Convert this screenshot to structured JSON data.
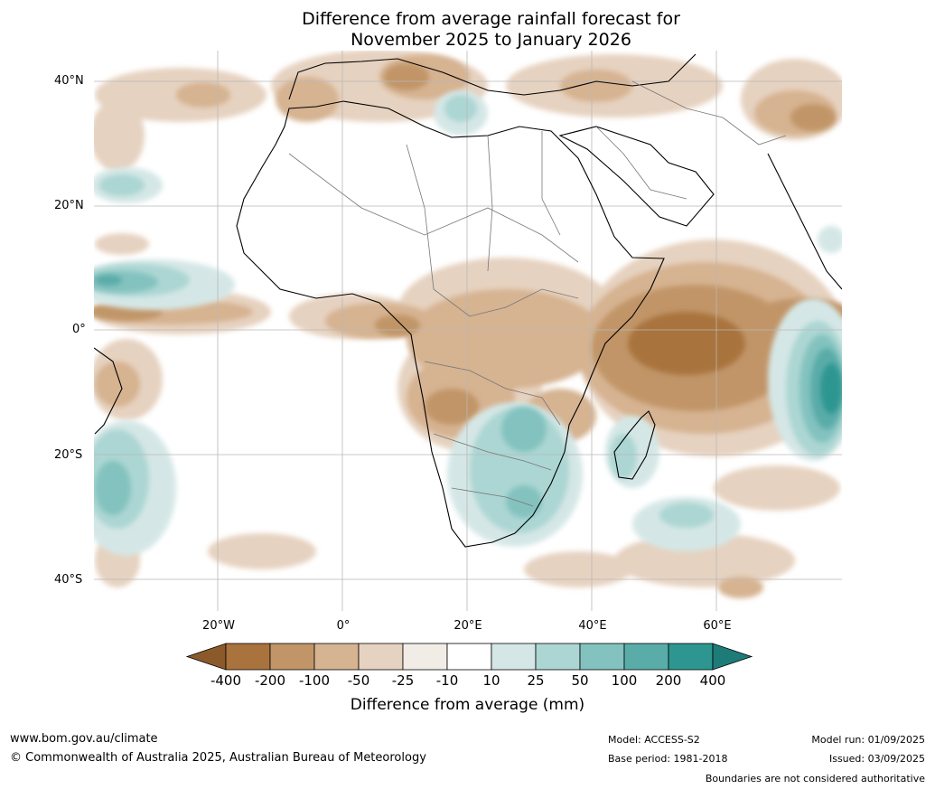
{
  "title": {
    "line1": "Difference from average rainfall forecast for",
    "line2": "November 2025 to January 2026"
  },
  "map": {
    "region": "Africa",
    "lat_labels": [
      "40°N",
      "20°N",
      "0°",
      "20°S",
      "40°S"
    ],
    "lon_labels": [
      "20°W",
      "0°",
      "20°E",
      "40°E",
      "60°E"
    ],
    "extent": {
      "lon_min": -40,
      "lon_max": 80,
      "lat_min": -45,
      "lat_max": 45
    }
  },
  "colors": {
    "extreme_dry": "#8c5a2a",
    "dry_400": "#a9733d",
    "dry_200": "#c19568",
    "dry_100": "#d6b391",
    "dry_50": "#e6d2c0",
    "dry_25": "#f2ece6",
    "neutral": "#ffffff",
    "wet_25": "#d4e7e6",
    "wet_50": "#acd6d3",
    "wet_100": "#83c2bf",
    "wet_200": "#5aaca9",
    "wet_400": "#2e9691",
    "extreme_wet": "#1d7c78"
  },
  "legend": {
    "ticks": [
      "-400",
      "-200",
      "-100",
      "-50",
      "-25",
      "-10",
      "10",
      "25",
      "50",
      "100",
      "200",
      "400"
    ],
    "title": "Difference from average (mm)"
  },
  "footer": {
    "website": "www.bom.gov.au/climate",
    "copyright": "© Commonwealth of Australia 2025, Australian Bureau of Meteorology",
    "model": "Model: ACCESS-S2",
    "base_period": "Base period: 1981-2018",
    "model_run": "Model run: 01/09/2025",
    "issued": "Issued: 03/09/2025",
    "boundaries_note": "Boundaries are not considered authoritative"
  }
}
